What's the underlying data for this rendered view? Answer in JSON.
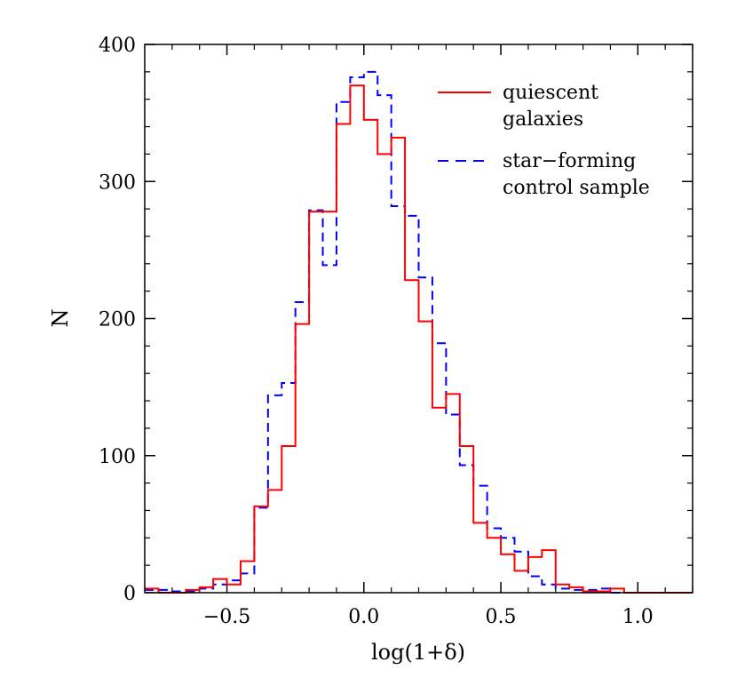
{
  "chart_data": {
    "type": "histogram",
    "title": "",
    "xlabel": "log(1+δ)",
    "ylabel": "N",
    "xlim": [
      -0.8,
      1.2
    ],
    "ylim": [
      0,
      400
    ],
    "bin_width": 0.05,
    "xticks": [
      -0.5,
      0.0,
      0.5,
      1.0
    ],
    "xtick_labels": [
      "−0.5",
      "0.0",
      "0.5",
      "1.0"
    ],
    "yticks": [
      0,
      100,
      200,
      300,
      400
    ],
    "ytick_labels": [
      "0",
      "100",
      "200",
      "300",
      "400"
    ],
    "grid": false,
    "legend_position": "top-right",
    "series": [
      {
        "name": "quiescent galaxies",
        "legend_lines": [
          "quiescent",
          "galaxies"
        ],
        "color": "#ff0000",
        "linestyle": "solid",
        "bin_edges": [
          -0.8,
          -0.75,
          -0.7,
          -0.65,
          -0.6,
          -0.55,
          -0.5,
          -0.45,
          -0.4,
          -0.35,
          -0.3,
          -0.25,
          -0.2,
          -0.15,
          -0.1,
          -0.05,
          0.0,
          0.05,
          0.1,
          0.15,
          0.2,
          0.25,
          0.3,
          0.35,
          0.4,
          0.45,
          0.5,
          0.55,
          0.6,
          0.65,
          0.7,
          0.75,
          0.8,
          0.85,
          0.9,
          0.95,
          1.0,
          1.05,
          1.1,
          1.15,
          1.2
        ],
        "counts": [
          3,
          0,
          0,
          2,
          4,
          10,
          6,
          23,
          63,
          75,
          107,
          196,
          278,
          278,
          342,
          370,
          345,
          320,
          332,
          228,
          198,
          135,
          145,
          107,
          51,
          40,
          28,
          16,
          26,
          31,
          6,
          4,
          1,
          1,
          3,
          0,
          0,
          0,
          0,
          0
        ]
      },
      {
        "name": "star-forming control sample",
        "legend_lines": [
          "star−forming",
          "control sample"
        ],
        "color": "#0000ff",
        "linestyle": "dashed",
        "bin_edges": [
          -0.8,
          -0.75,
          -0.7,
          -0.65,
          -0.6,
          -0.55,
          -0.5,
          -0.45,
          -0.4,
          -0.35,
          -0.3,
          -0.25,
          -0.2,
          -0.15,
          -0.1,
          -0.05,
          0.0,
          0.05,
          0.1,
          0.15,
          0.2,
          0.25,
          0.3,
          0.35,
          0.4,
          0.45,
          0.5,
          0.55,
          0.6,
          0.65,
          0.7,
          0.75,
          0.8,
          0.85,
          0.9,
          0.95,
          1.0,
          1.05,
          1.1,
          1.15,
          1.2
        ],
        "counts": [
          2,
          2,
          1,
          1,
          3,
          6,
          9,
          14,
          62,
          144,
          153,
          212,
          279,
          239,
          358,
          376,
          380,
          363,
          282,
          275,
          230,
          182,
          130,
          93,
          78,
          47,
          40,
          30,
          12,
          6,
          3,
          2,
          2,
          3,
          0,
          0,
          0,
          0,
          0,
          0
        ]
      }
    ]
  }
}
